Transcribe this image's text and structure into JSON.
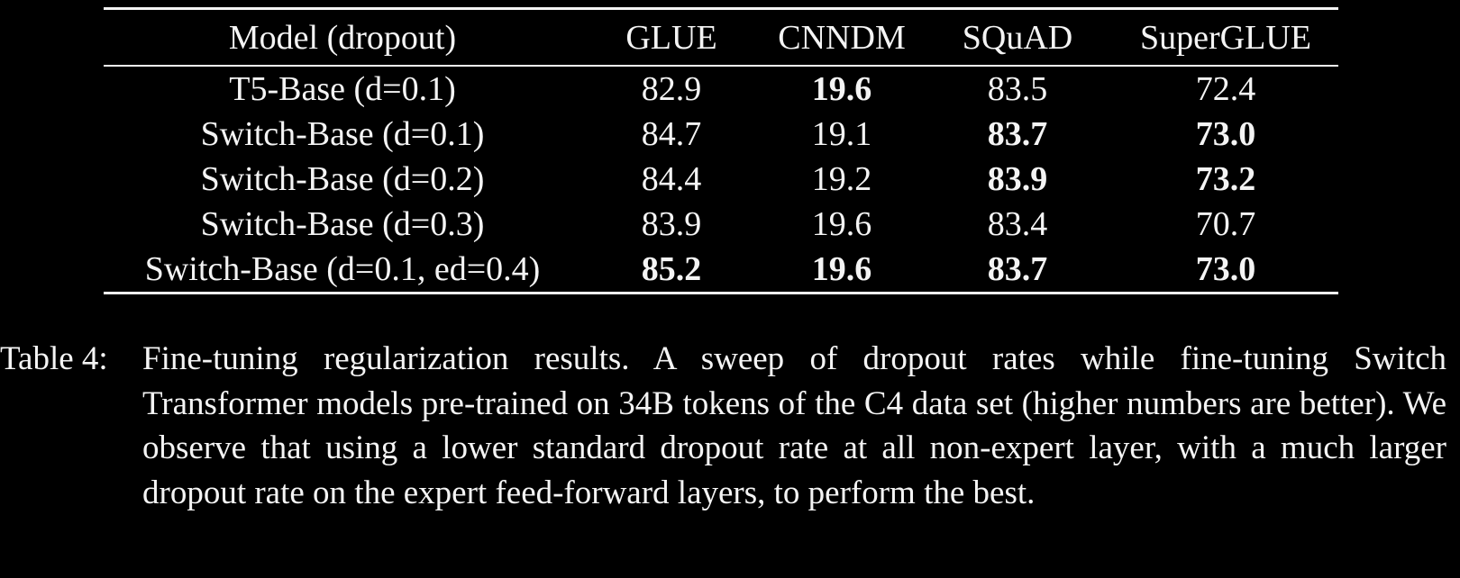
{
  "table": {
    "headers": [
      "Model (dropout)",
      "GLUE",
      "CNNDM",
      "SQuAD",
      "SuperGLUE"
    ],
    "rows": [
      {
        "model": "T5-Base (d=0.1)",
        "values": [
          "82.9",
          "19.6",
          "83.5",
          "72.4"
        ],
        "bold": [
          false,
          true,
          false,
          false
        ]
      },
      {
        "model": "Switch-Base (d=0.1)",
        "values": [
          "84.7",
          "19.1",
          "83.7",
          "73.0"
        ],
        "bold": [
          false,
          false,
          true,
          true
        ]
      },
      {
        "model": "Switch-Base (d=0.2)",
        "values": [
          "84.4",
          "19.2",
          "83.9",
          "73.2"
        ],
        "bold": [
          false,
          false,
          true,
          true
        ]
      },
      {
        "model": "Switch-Base (d=0.3)",
        "values": [
          "83.9",
          "19.6",
          "83.4",
          "70.7"
        ],
        "bold": [
          false,
          false,
          false,
          false
        ]
      },
      {
        "model": "Switch-Base (d=0.1, ed=0.4)",
        "values": [
          "85.2",
          "19.6",
          "83.7",
          "73.0"
        ],
        "bold": [
          true,
          true,
          true,
          true
        ]
      }
    ]
  },
  "caption": {
    "label": "Table 4:",
    "text": "Fine-tuning regularization results. A sweep of dropout rates while fine-tuning Switch Transformer models pre-trained on 34B tokens of the C4 data set (higher numbers are better). We observe that using a lower standard dropout rate at all non-expert layer, with a much larger dropout rate on the expert feed-forward layers, to perform the best."
  },
  "colors": {
    "background": "#000000",
    "text": "#f4f4f4"
  }
}
